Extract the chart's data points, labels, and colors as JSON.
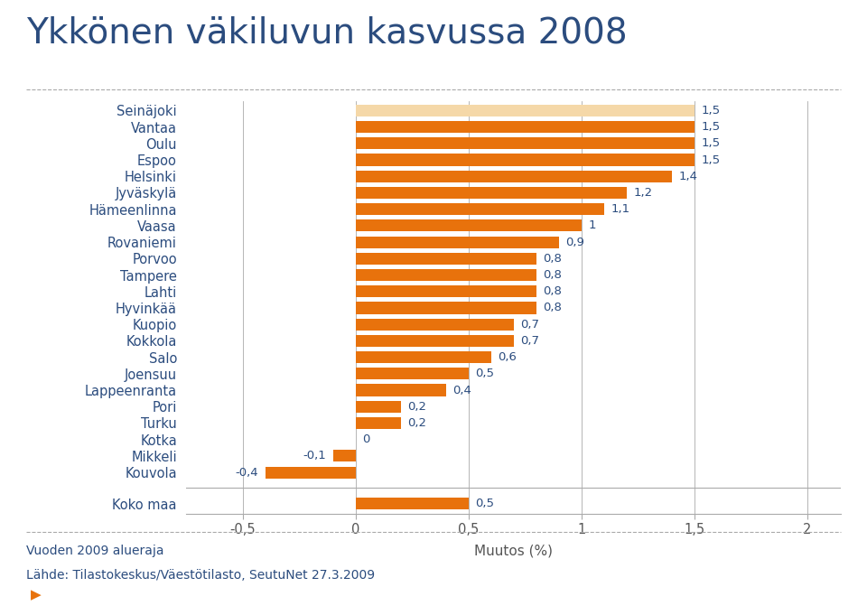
{
  "title": "Ykkönen väkiluvun kasvussa 2008",
  "categories": [
    "Seinäjoki",
    "Vantaa",
    "Oulu",
    "Espoo",
    "Helsinki",
    "Jyväskylä",
    "Hämeenlinna",
    "Vaasa",
    "Rovaniemi",
    "Porvoo",
    "Tampere",
    "Lahti",
    "Hyvinkää",
    "Kuopio",
    "Kokkola",
    "Salo",
    "Joensuu",
    "Lappeenranta",
    "Pori",
    "Turku",
    "Kotka",
    "Mikkeli",
    "Kouvola"
  ],
  "values": [
    1.5,
    1.5,
    1.5,
    1.5,
    1.4,
    1.2,
    1.1,
    1.0,
    0.9,
    0.8,
    0.8,
    0.8,
    0.8,
    0.7,
    0.7,
    0.6,
    0.5,
    0.4,
    0.2,
    0.2,
    0.0,
    -0.1,
    -0.4
  ],
  "koko_maa_value": 0.5,
  "koko_maa_label": "Koko maa",
  "bar_color_main": "#E8720C",
  "bar_color_first": "#F5D8A8",
  "xlabel": "Muutos (%)",
  "xlim": [
    -0.75,
    2.15
  ],
  "xticks": [
    -0.5,
    0,
    0.5,
    1.0,
    1.5,
    2.0
  ],
  "xtick_labels": [
    "-0,5",
    "0",
    "0,5",
    "1",
    "1,5",
    "2"
  ],
  "title_color": "#2B4C7E",
  "label_color": "#2B4C7E",
  "axis_color": "#AAAAAA",
  "background_color": "#FFFFFF",
  "footer_line1": "Vuoden 2009 alueraja",
  "footer_line2": "Lähde: Tilastokeskus/Väestötilasto, SeutuNet 27.3.2009",
  "footer_color": "#2B4C7E",
  "title_fontsize": 28,
  "label_fontsize": 10.5,
  "value_fontsize": 9.5,
  "xlabel_fontsize": 11
}
